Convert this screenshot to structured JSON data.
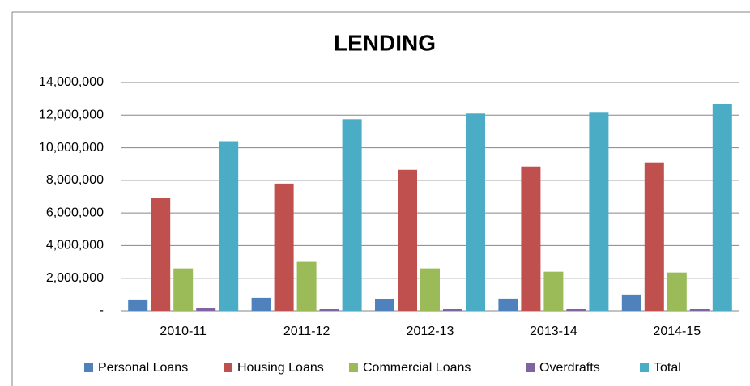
{
  "chart_data": {
    "type": "bar",
    "title": "LENDING",
    "categories": [
      "2010-11",
      "2011-12",
      "2012-13",
      "2013-14",
      "2014-15"
    ],
    "series": [
      {
        "name": "Personal Loans",
        "color": "#4f81bd",
        "values": [
          650000,
          800000,
          700000,
          750000,
          1000000
        ]
      },
      {
        "name": "Housing Loans",
        "color": "#c0504d",
        "values": [
          6900000,
          7800000,
          8650000,
          8850000,
          9100000
        ]
      },
      {
        "name": "Commercial Loans",
        "color": "#9bbb59",
        "values": [
          2600000,
          3000000,
          2600000,
          2400000,
          2350000
        ]
      },
      {
        "name": "Overdrafts",
        "color": "#8064a2",
        "values": [
          150000,
          100000,
          100000,
          100000,
          100000
        ]
      },
      {
        "name": "Total",
        "color": "#4bacc6",
        "values": [
          10400000,
          11750000,
          12100000,
          12150000,
          12700000
        ]
      }
    ],
    "ylim": [
      0,
      14000000
    ],
    "yticks": [
      {
        "value": 0,
        "label": "-"
      },
      {
        "value": 2000000,
        "label": "2,000,000"
      },
      {
        "value": 4000000,
        "label": "4,000,000"
      },
      {
        "value": 6000000,
        "label": "6,000,000"
      },
      {
        "value": 8000000,
        "label": "8,000,000"
      },
      {
        "value": 10000000,
        "label": "10,000,000"
      },
      {
        "value": 12000000,
        "label": "12,000,000"
      },
      {
        "value": 14000000,
        "label": "14,000,000"
      }
    ],
    "grid": true,
    "legend": "bottom"
  }
}
